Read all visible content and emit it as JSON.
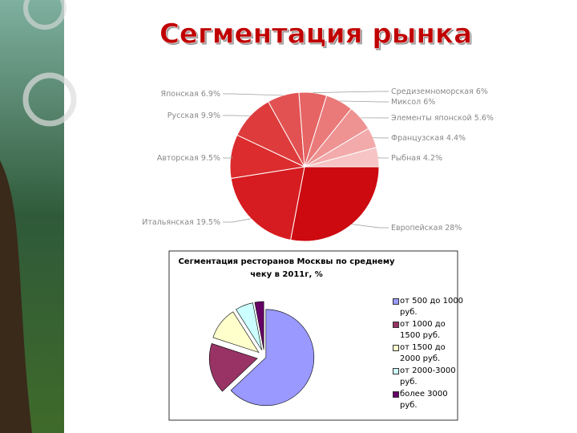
{
  "title": "Сегментация рынка",
  "chart_data": [
    {
      "type": "pie",
      "categories": [
        "Европейская",
        "Итальянская",
        "Авторская",
        "Русская",
        "Японская",
        "Средиземноморская",
        "Миксол",
        "Элементы японской",
        "Французская",
        "Рыбная"
      ],
      "values": [
        28,
        19.5,
        9.5,
        9.9,
        6.9,
        6,
        6,
        5.6,
        4.4,
        4.2
      ],
      "value_labels": [
        "28%",
        "19.5%",
        "9.5%",
        "9.9%",
        "6.9%",
        "6%",
        "6%",
        "5.6%",
        "4.4%",
        "4.2%"
      ],
      "colors": [
        "#cc0a10",
        "#d61c20",
        "#dc2c2e",
        "#de3c3c",
        "#e25252",
        "#e66464",
        "#ea7a7a",
        "#ee9292",
        "#f2aaaa",
        "#f6c4c4"
      ]
    },
    {
      "type": "pie",
      "title": "Сегментация ресторанов Москвы по среднему чеку в 2011г, %",
      "categories": [
        "от 500 до 1000 руб.",
        "от 1000 до 1500 руб.",
        "от 1500 до 2000 руб.",
        "от 2000-3000 руб.",
        "более 3000 руб."
      ],
      "values": [
        63,
        17,
        11,
        6,
        3
      ],
      "colors": [
        "#9999ff",
        "#993366",
        "#ffffcc",
        "#ccffff",
        "#660066"
      ],
      "legend": "right",
      "exploded": true
    }
  ]
}
